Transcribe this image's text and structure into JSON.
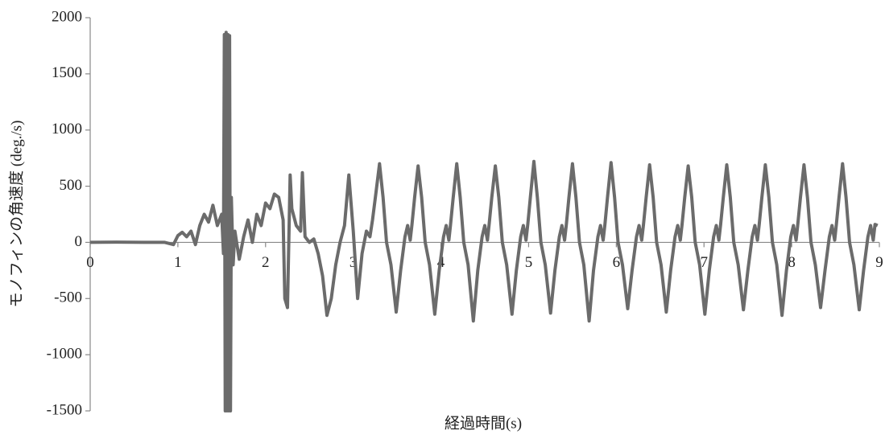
{
  "chart_data": {
    "type": "line",
    "x_label": "経過時間(s)",
    "y_label": "モノフィンの角速度 (deg./s)",
    "color": "#6b6b6b",
    "xlim": [
      0,
      9
    ],
    "xticks": [
      0,
      1,
      2,
      3,
      4,
      5,
      6,
      7,
      8,
      9
    ],
    "ylim": [
      -1500,
      2000
    ],
    "yticks": [
      -1500,
      -1000,
      -500,
      0,
      500,
      1000,
      1500,
      2000
    ],
    "x": [
      0,
      0.3,
      0.6,
      0.85,
      0.95,
      1.0,
      1.05,
      1.1,
      1.15,
      1.2,
      1.25,
      1.3,
      1.35,
      1.4,
      1.45,
      1.5,
      1.52,
      1.53,
      1.54,
      1.55,
      1.56,
      1.57,
      1.58,
      1.59,
      1.6,
      1.61,
      1.63,
      1.65,
      1.7,
      1.75,
      1.8,
      1.85,
      1.9,
      1.95,
      2.0,
      2.05,
      2.1,
      2.15,
      2.2,
      2.22,
      2.25,
      2.28,
      2.3,
      2.35,
      2.4,
      2.42,
      2.45,
      2.5,
      2.55,
      2.6,
      2.65,
      2.7,
      2.75,
      2.8,
      2.85,
      2.9,
      2.95,
      3.0,
      3.05,
      3.1,
      3.15,
      3.19,
      3.22,
      3.26,
      3.3,
      3.34,
      3.38,
      3.43,
      3.49,
      3.54,
      3.59,
      3.62,
      3.65,
      3.67,
      3.7,
      3.74,
      3.78,
      3.82,
      3.87,
      3.93,
      3.98,
      4.03,
      4.06,
      4.09,
      4.11,
      4.14,
      4.18,
      4.22,
      4.26,
      4.31,
      4.37,
      4.42,
      4.47,
      4.5,
      4.53,
      4.55,
      4.58,
      4.62,
      4.66,
      4.7,
      4.75,
      4.81,
      4.86,
      4.91,
      4.94,
      4.97,
      4.99,
      5.02,
      5.06,
      5.1,
      5.14,
      5.19,
      5.25,
      5.3,
      5.35,
      5.38,
      5.41,
      5.43,
      5.46,
      5.5,
      5.54,
      5.58,
      5.63,
      5.69,
      5.74,
      5.79,
      5.82,
      5.85,
      5.87,
      5.9,
      5.94,
      5.98,
      6.02,
      6.07,
      6.13,
      6.18,
      6.23,
      6.26,
      6.29,
      6.31,
      6.34,
      6.38,
      6.42,
      6.46,
      6.51,
      6.57,
      6.62,
      6.67,
      6.7,
      6.73,
      6.75,
      6.78,
      6.82,
      6.86,
      6.9,
      6.95,
      7.01,
      7.06,
      7.11,
      7.14,
      7.17,
      7.19,
      7.22,
      7.26,
      7.3,
      7.34,
      7.39,
      7.45,
      7.5,
      7.55,
      7.58,
      7.61,
      7.63,
      7.66,
      7.7,
      7.74,
      7.78,
      7.83,
      7.89,
      7.94,
      7.99,
      8.02,
      8.05,
      8.07,
      8.1,
      8.14,
      8.18,
      8.22,
      8.27,
      8.33,
      8.38,
      8.43,
      8.46,
      8.49,
      8.51,
      8.54,
      8.58,
      8.62,
      8.66,
      8.71,
      8.77,
      8.82,
      8.87,
      8.9,
      8.93,
      8.95,
      8.98
    ],
    "values": [
      0,
      2,
      0,
      0,
      -20,
      60,
      90,
      50,
      100,
      -20,
      150,
      250,
      180,
      330,
      150,
      250,
      -100,
      1850,
      -1500,
      1870,
      -1500,
      1850,
      -1500,
      1840,
      -1500,
      400,
      -200,
      100,
      -150,
      50,
      200,
      0,
      250,
      150,
      350,
      300,
      430,
      400,
      200,
      -500,
      -580,
      600,
      300,
      150,
      100,
      620,
      50,
      0,
      30,
      -100,
      -300,
      -650,
      -500,
      -200,
      0,
      150,
      600,
      100,
      -500,
      -100,
      100,
      50,
      200,
      450,
      700,
      400,
      0,
      -200,
      -620,
      -250,
      50,
      150,
      20,
      160,
      400,
      680,
      400,
      0,
      -200,
      -640,
      -250,
      50,
      150,
      20,
      160,
      400,
      700,
      400,
      0,
      -200,
      -700,
      -250,
      50,
      150,
      20,
      160,
      400,
      680,
      400,
      0,
      -200,
      -640,
      -250,
      50,
      150,
      20,
      160,
      400,
      720,
      400,
      0,
      -200,
      -630,
      -250,
      50,
      150,
      20,
      160,
      400,
      700,
      400,
      0,
      -200,
      -700,
      -250,
      50,
      150,
      20,
      160,
      400,
      710,
      400,
      0,
      -200,
      -590,
      -250,
      50,
      150,
      20,
      160,
      400,
      690,
      400,
      0,
      -200,
      -620,
      -250,
      50,
      150,
      20,
      160,
      400,
      680,
      400,
      0,
      -200,
      -640,
      -250,
      50,
      150,
      20,
      160,
      400,
      690,
      400,
      0,
      -200,
      -600,
      -250,
      50,
      150,
      20,
      160,
      400,
      690,
      400,
      0,
      -200,
      -650,
      -250,
      50,
      150,
      20,
      160,
      400,
      690,
      400,
      0,
      -200,
      -580,
      -250,
      50,
      150,
      20,
      160,
      400,
      700,
      400,
      0,
      -200,
      -600,
      -250,
      50,
      150,
      20,
      160,
      150
    ]
  }
}
